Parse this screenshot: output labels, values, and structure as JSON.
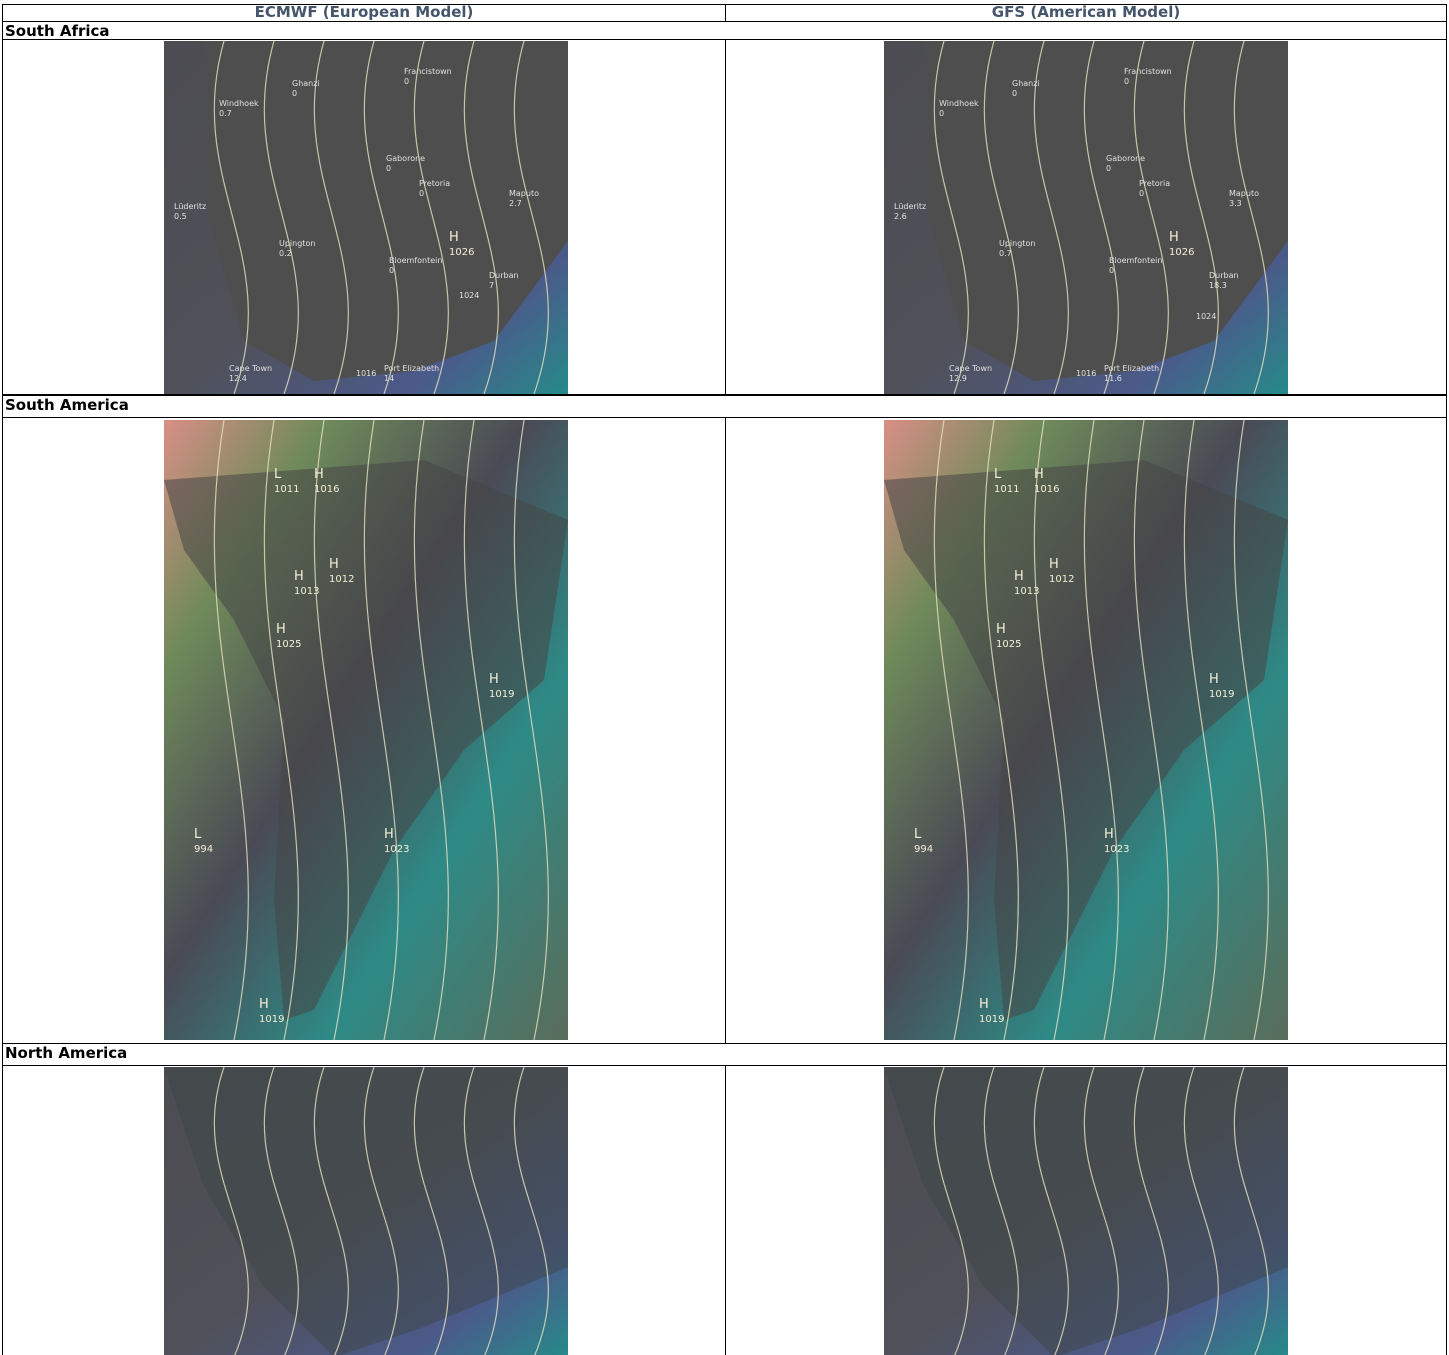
{
  "table": {
    "header": [
      "ECMWF (European Model)",
      "GFS (American Model)"
    ],
    "rows": [
      {
        "region": "South Africa",
        "cells": [
          {
            "labels": [
              [
                "Windhoek",
                "0.7"
              ],
              [
                "Ghanzi",
                "0"
              ],
              [
                "Francistown",
                "0"
              ],
              [
                "Gaborone",
                "0"
              ],
              [
                "Pretoria",
                "0"
              ],
              [
                "Maputo",
                "2.7"
              ],
              [
                "Lüderitz",
                "0.5"
              ],
              [
                "Upington",
                "0.2"
              ],
              [
                "Bloemfontein",
                "0"
              ],
              [
                "H",
                "1026"
              ],
              [
                "1024"
              ],
              [
                "Durban",
                "7"
              ],
              [
                "Cape Town",
                "12.4"
              ],
              [
                "1016"
              ],
              [
                "Port Elizabeth",
                "14"
              ]
            ]
          },
          {
            "labels": [
              [
                "Windhoek",
                "0"
              ],
              [
                "Ghanzi",
                "0"
              ],
              [
                "Francistown",
                "0"
              ],
              [
                "Gaborone",
                "0"
              ],
              [
                "Pretoria",
                "0"
              ],
              [
                "Maputo",
                "3.3"
              ],
              [
                "Lüderitz",
                "2.6"
              ],
              [
                "Upington",
                "0.7"
              ],
              [
                "Bloemfontein",
                "0"
              ],
              [
                "H",
                "1026"
              ],
              [
                "1024"
              ],
              [
                "Durban",
                "18.3"
              ],
              [
                "Cape Town",
                "12.9"
              ],
              [
                "1016"
              ],
              [
                "Port Elizabeth",
                "11.6"
              ]
            ]
          }
        ]
      },
      {
        "region": "South America",
        "cells": [
          {
            "labels": [
              [
                "L",
                "1011"
              ],
              [
                "H",
                "1016"
              ],
              [
                "H",
                "1012"
              ],
              [
                "H",
                "1013"
              ],
              [
                "H",
                "1025"
              ],
              [
                "H",
                "1019"
              ],
              [
                "L",
                "994"
              ],
              [
                "H",
                "1023"
              ],
              [
                "H",
                "1019"
              ]
            ]
          },
          {
            "labels": [
              [
                "L",
                "1011"
              ],
              [
                "H",
                "1016"
              ],
              [
                "H",
                "1012"
              ],
              [
                "H",
                "1013"
              ],
              [
                "H",
                "1025"
              ],
              [
                "H",
                "1019"
              ],
              [
                "L",
                "994"
              ],
              [
                "H",
                "1023"
              ],
              [
                "H",
                "1019"
              ]
            ]
          }
        ]
      },
      {
        "region": "North America",
        "cells": [
          {
            "labels": []
          },
          {
            "labels": []
          }
        ]
      }
    ]
  }
}
